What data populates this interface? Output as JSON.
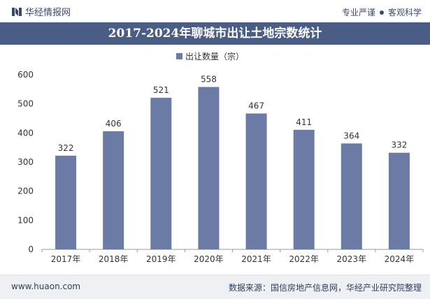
{
  "header": {
    "brand": "华经情报网",
    "tagline_left": "专业严谨",
    "tagline_right": "客观科学"
  },
  "colors": {
    "bar": "#6b7ba5",
    "title_bg": "#4a5d86",
    "axis": "#333333"
  },
  "chart_data": {
    "type": "bar",
    "title": "2017-2024年聊城市出让土地宗数统计",
    "legend": "出让数量（宗）",
    "legend_position": "top-center",
    "categories": [
      "2017年",
      "2018年",
      "2019年",
      "2020年",
      "2021年",
      "2022年",
      "2023年",
      "2024年"
    ],
    "series": [
      {
        "name": "出让数量（宗）",
        "values": [
          322,
          406,
          521,
          558,
          467,
          411,
          364,
          332
        ]
      }
    ],
    "yticks": [
      0,
      100,
      200,
      300,
      400,
      500,
      600
    ],
    "ylim": [
      0,
      600
    ],
    "xlabel": "",
    "ylabel": "",
    "grid": false
  },
  "footer": {
    "url": "www.huaon.com",
    "source": "数据来源：国信房地产信息网，华经产业研究院整理"
  }
}
